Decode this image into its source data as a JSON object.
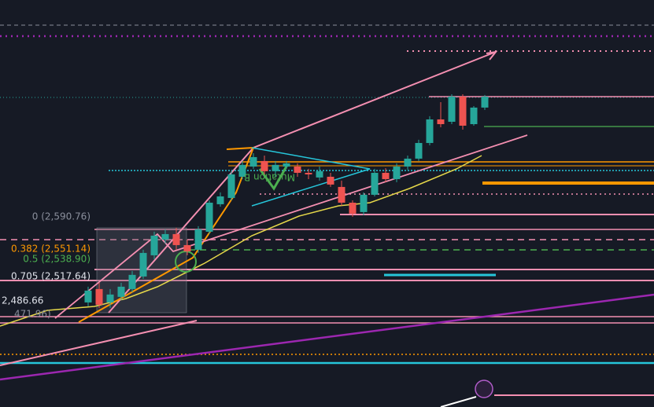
{
  "chart_data": {
    "type": "candlestick",
    "ylim": [
      2357,
      2856
    ],
    "up_color": "#26a69a",
    "down_color": "#ef5350",
    "open": [
      2485.2,
      2501.6,
      2485.2,
      2492,
      2501.6,
      2517,
      2543,
      2562.3,
      2569,
      2555.5,
      2549.8,
      2571.9,
      2605.6,
      2613.3,
      2639.3,
      2651.8,
      2658.6,
      2646.1,
      2651.8,
      2651.8,
      2644.1,
      2638.4,
      2639.3,
      2626.8,
      2607.5,
      2596,
      2617.2,
      2644.1,
      2636.4,
      2651.8,
      2661.5,
      2680.7,
      2709.6,
      2706.7,
      2737.6,
      2703.8,
      2724.1
    ],
    "high": [
      2504.5,
      2509.3,
      2501.6,
      2509.3,
      2523.8,
      2549.8,
      2571.9,
      2574.8,
      2576.7,
      2562.3,
      2578.7,
      2610.4,
      2620.1,
      2646.1,
      2658.6,
      2668.2,
      2665.3,
      2658.6,
      2658.6,
      2655.7,
      2649,
      2651.8,
      2644.1,
      2634.5,
      2610.4,
      2620.1,
      2649,
      2649.9,
      2655.7,
      2665.3,
      2684.6,
      2713.5,
      2730.8,
      2740.4,
      2740.4,
      2726,
      2739.5
    ],
    "low": [
      2480.4,
      2478.5,
      2478.5,
      2488.1,
      2497.8,
      2514.1,
      2538.2,
      2557.5,
      2549.8,
      2543,
      2545.9,
      2569,
      2602.7,
      2610.4,
      2636.4,
      2649,
      2642.2,
      2639.3,
      2649,
      2639.3,
      2636.4,
      2634.5,
      2626.8,
      2603.7,
      2590.2,
      2592.1,
      2615.2,
      2632.6,
      2632.6,
      2648,
      2658.6,
      2677.8,
      2700,
      2703.8,
      2697.1,
      2701.9,
      2721.2
    ],
    "close": [
      2499.7,
      2482.4,
      2494.9,
      2504.5,
      2519,
      2545.9,
      2567.1,
      2569,
      2555.5,
      2547.8,
      2574.8,
      2607.5,
      2615.2,
      2642.2,
      2653.8,
      2663.4,
      2646.1,
      2653.8,
      2655.7,
      2644.1,
      2642.2,
      2646.1,
      2629.7,
      2607.5,
      2594.1,
      2617.2,
      2644.1,
      2636.4,
      2651.8,
      2661.5,
      2680.7,
      2709.6,
      2703.8,
      2737.6,
      2701.9,
      2724.1,
      2737.6
    ],
    "fib_labels": [
      "0 (2,590.76)",
      "0.382 (2,551.14)",
      "0.5 (2,538.90)",
      "0.705 (2,517.64)",
      "2,486.66",
      "471.96)"
    ],
    "pattern_label": "Mutation B"
  }
}
